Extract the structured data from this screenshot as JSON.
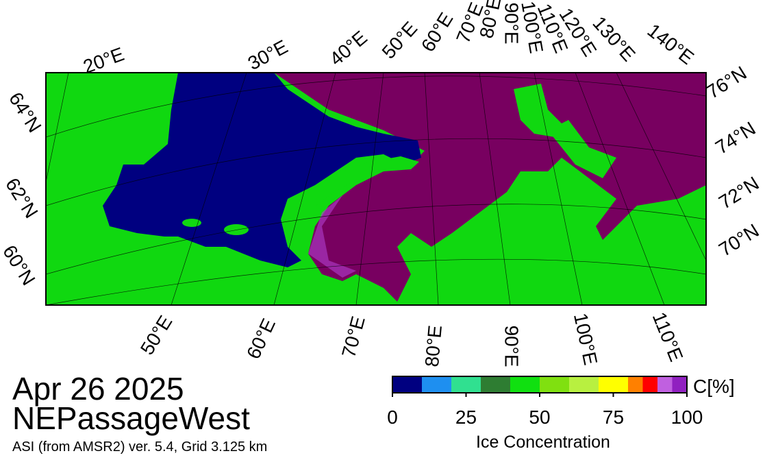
{
  "title": "Apr 26 2025",
  "region": "NEPassageWest",
  "source": "ASI (from AMSR2) ver. 5.4,  Grid 3.125 km",
  "map": {
    "top_labels": [
      "20°E",
      "30°E",
      "40°E",
      "50°E",
      "60°E",
      "70°E",
      "80°E",
      "90°E",
      "100°E",
      "110°E",
      "120°E",
      "130°E",
      "140°E"
    ],
    "bottom_labels": [
      "50°E",
      "60°E",
      "70°E",
      "80°E",
      "90°E",
      "100°E",
      "110°E"
    ],
    "right_labels": [
      "76°N",
      "74°N",
      "72°N",
      "70°N"
    ],
    "left_labels": [
      "64°N",
      "62°N",
      "60°N"
    ]
  },
  "colorbar": {
    "unit": "C[%]",
    "label": "Ice Concentration",
    "range": [
      0,
      100
    ],
    "ticks": [
      0,
      25,
      50,
      75,
      100
    ],
    "steps": [
      {
        "from": 0,
        "to": 10,
        "color": "#000080"
      },
      {
        "from": 10,
        "to": 20,
        "color": "#1e8ff0"
      },
      {
        "from": 20,
        "to": 30,
        "color": "#30e090"
      },
      {
        "from": 30,
        "to": 40,
        "color": "#2e7d32"
      },
      {
        "from": 40,
        "to": 50,
        "color": "#10e010"
      },
      {
        "from": 50,
        "to": 60,
        "color": "#80e010"
      },
      {
        "from": 60,
        "to": 70,
        "color": "#b8f040"
      },
      {
        "from": 70,
        "to": 80,
        "color": "#ffff00"
      },
      {
        "from": 80,
        "to": 85,
        "color": "#ff8000"
      },
      {
        "from": 85,
        "to": 90,
        "color": "#ff0000"
      },
      {
        "from": 90,
        "to": 95,
        "color": "#c060e0"
      },
      {
        "from": 95,
        "to": 100,
        "color": "#9020c0"
      }
    ]
  }
}
